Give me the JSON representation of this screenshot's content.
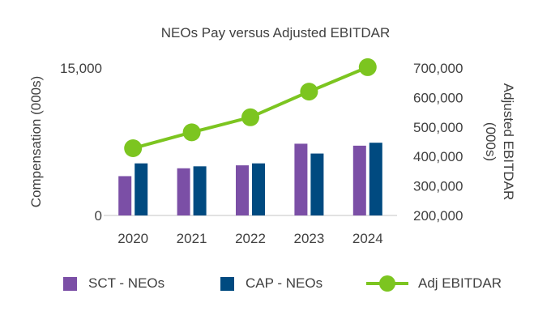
{
  "chart_data": {
    "type": "bar",
    "title": "NEOs Pay versus Adjusted EBITDAR",
    "categories": [
      "2020",
      "2021",
      "2022",
      "2023",
      "2024"
    ],
    "ylabel": "Compensation (000s)",
    "ylim": [
      0,
      15000
    ],
    "yticks": [
      "0",
      "15,000"
    ],
    "y2label_line1": "Adjusted EBITDAR",
    "y2label_line2": "(000s)",
    "y2lim": [
      200000,
      700000
    ],
    "y2ticks": [
      "200,000",
      "300,000",
      "400,000",
      "500,000",
      "600,000",
      "700,000"
    ],
    "series": [
      {
        "name": "SCT - NEOs",
        "type": "bar",
        "axis": "left",
        "color": "#7B4FA6",
        "values": [
          4000,
          4800,
          5100,
          7300,
          7100
        ]
      },
      {
        "name": "CAP - NEOs",
        "type": "bar",
        "axis": "left",
        "color": "#004A80",
        "values": [
          5300,
          5000,
          5300,
          6300,
          7400
        ]
      },
      {
        "name": "Adj EBITDAR",
        "type": "line",
        "axis": "right",
        "color": "#7CC520",
        "values": [
          428000,
          482000,
          533000,
          620000,
          703000
        ]
      }
    ]
  }
}
